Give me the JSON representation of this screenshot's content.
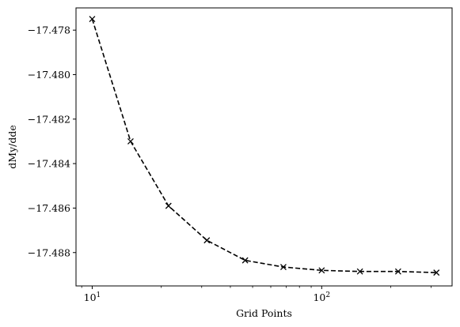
{
  "chart_data": {
    "type": "line",
    "title": "",
    "xlabel": "Grid Points",
    "ylabel": "dMy/dde",
    "xscale": "log",
    "xlim": [
      8.5,
      370
    ],
    "ylim": [
      -17.4895,
      -17.477
    ],
    "x_ticks": [
      {
        "value": 10,
        "base": "10",
        "exp": "1"
      },
      {
        "value": 100,
        "base": "10",
        "exp": "2"
      }
    ],
    "y_ticks": [
      {
        "value": -17.478,
        "label": "−17.478"
      },
      {
        "value": -17.48,
        "label": "−17.480"
      },
      {
        "value": -17.482,
        "label": "−17.482"
      },
      {
        "value": -17.484,
        "label": "−17.484"
      },
      {
        "value": -17.486,
        "label": "−17.486"
      },
      {
        "value": -17.488,
        "label": "−17.488"
      }
    ],
    "series": [
      {
        "line_style": "dashed",
        "marker": "x",
        "color": "#000000",
        "x": [
          10,
          14.7,
          21.5,
          31.6,
          46.4,
          68.1,
          100,
          146.8,
          215.4,
          316.2
        ],
        "y": [
          -17.4775,
          -17.483,
          -17.4859,
          -17.48745,
          -17.48835,
          -17.48865,
          -17.4888,
          -17.48885,
          -17.48885,
          -17.4889
        ]
      }
    ],
    "grid": false,
    "legend": "none"
  }
}
